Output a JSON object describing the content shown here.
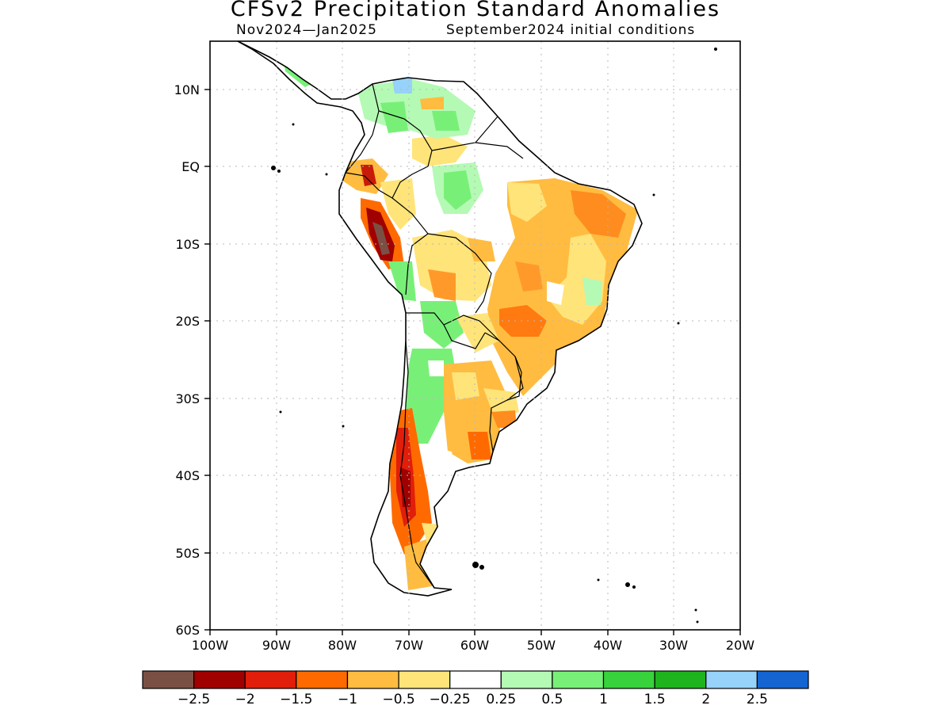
{
  "header": {
    "title": "CFSv2 Precipitation Standard Anomalies",
    "period": "Nov2024—Jan2025",
    "init": "September2024 initial conditions"
  },
  "map": {
    "lat_labels": [
      "10N",
      "EQ",
      "10S",
      "20S",
      "30S",
      "40S",
      "50S",
      "60S"
    ],
    "lon_labels": [
      "100W",
      "90W",
      "80W",
      "70W",
      "60W",
      "50W",
      "40W",
      "30W",
      "20W"
    ],
    "extent": {
      "lon": [
        -100,
        -20
      ],
      "lat": [
        -60,
        15
      ]
    },
    "gridlines": "dotted"
  },
  "colorbar": {
    "colors": [
      "#7b5044",
      "#a00000",
      "#e01e0a",
      "#ff6a00",
      "#ffbc40",
      "#ffe47a",
      "#ffffff",
      "#b4fab4",
      "#78f078",
      "#37d23c",
      "#1eb41e",
      "#96d2fa",
      "#1464d2"
    ],
    "labels": [
      "−2.5",
      "−2",
      "−1.5",
      "−1",
      "−0.5",
      "−0.25",
      "0.25",
      "0.5",
      "1",
      "1.5",
      "2",
      "2.5"
    ]
  }
}
